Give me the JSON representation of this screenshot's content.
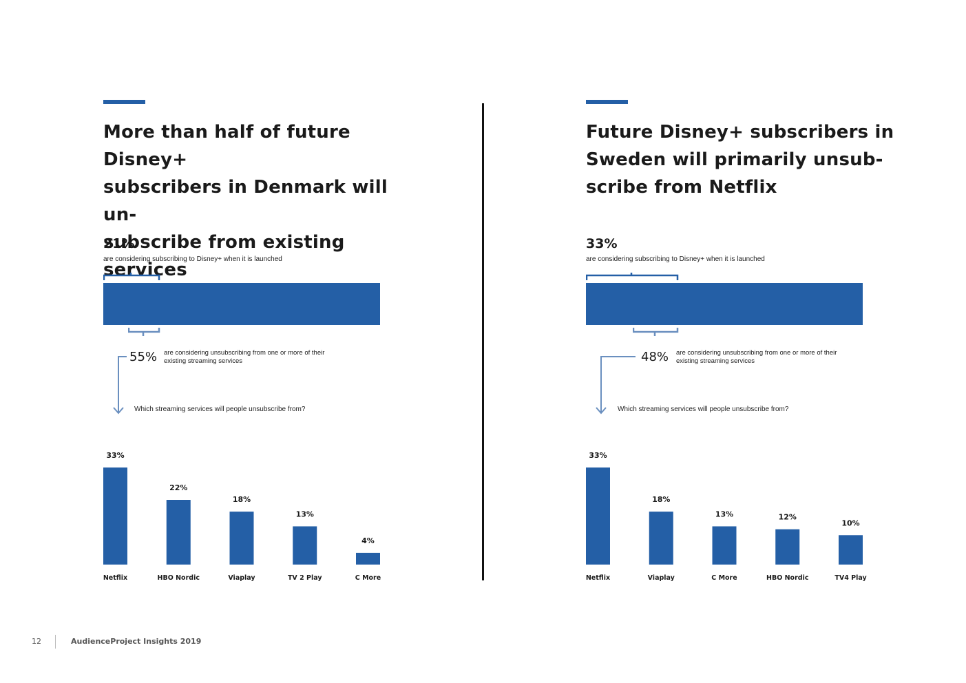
{
  "colors": {
    "accent": "#245fa6",
    "text": "#1a1a1a"
  },
  "panels": [
    {
      "headline": "More than half of future Disney+ subscribers in Denmark will un-subscribe from existing services",
      "headline_lines": [
        "More than half of future Disney+",
        "subscribers in Denmark will un-",
        "subscribe from existing services"
      ],
      "considering_pct": "21%",
      "considering_text": "are considering subscribing to Disney+ when it is launched",
      "unsubscribe_pct": "55%",
      "unsubscribe_text": "are considering unsubscribing from one or more of their existing streaming services",
      "question": "Which streaming services will people unsubscribe from?",
      "considering_share": 0.21,
      "unsubscribe_share": 0.55
    },
    {
      "headline": "Future Disney+ subscribers in Sweden will primarily unsub-scribe from Netflix",
      "headline_lines": [
        "Future Disney+ subscribers in",
        "Sweden will primarily unsub-",
        "scribe from Netflix"
      ],
      "considering_pct": "33%",
      "considering_text": "are considering subscribing to Disney+ when it is launched",
      "unsubscribe_pct": "48%",
      "unsubscribe_text": "are considering unsubscribing from one or more of their existing streaming services",
      "question": "Which streaming services will people unsubscribe from?",
      "considering_share": 0.33,
      "unsubscribe_share": 0.48
    }
  ],
  "chart_data": [
    {
      "type": "bar",
      "title": "",
      "categories": [
        "Netflix",
        "HBO Nordic",
        "Viaplay",
        "TV 2 Play",
        "C More"
      ],
      "values": [
        33,
        22,
        18,
        13,
        4
      ],
      "value_labels": [
        "33%",
        "22%",
        "18%",
        "13%",
        "4%"
      ],
      "ylim": [
        0,
        33
      ],
      "grid": false
    },
    {
      "type": "bar",
      "title": "",
      "categories": [
        "Netflix",
        "Viaplay",
        "C More",
        "HBO Nordic",
        "TV4 Play"
      ],
      "values": [
        33,
        18,
        13,
        12,
        10
      ],
      "value_labels": [
        "33%",
        "18%",
        "13%",
        "12%",
        "10%"
      ],
      "ylim": [
        0,
        33
      ],
      "grid": false
    }
  ],
  "footer": {
    "page": "12",
    "label": "AudienceProject Insights 2019"
  }
}
